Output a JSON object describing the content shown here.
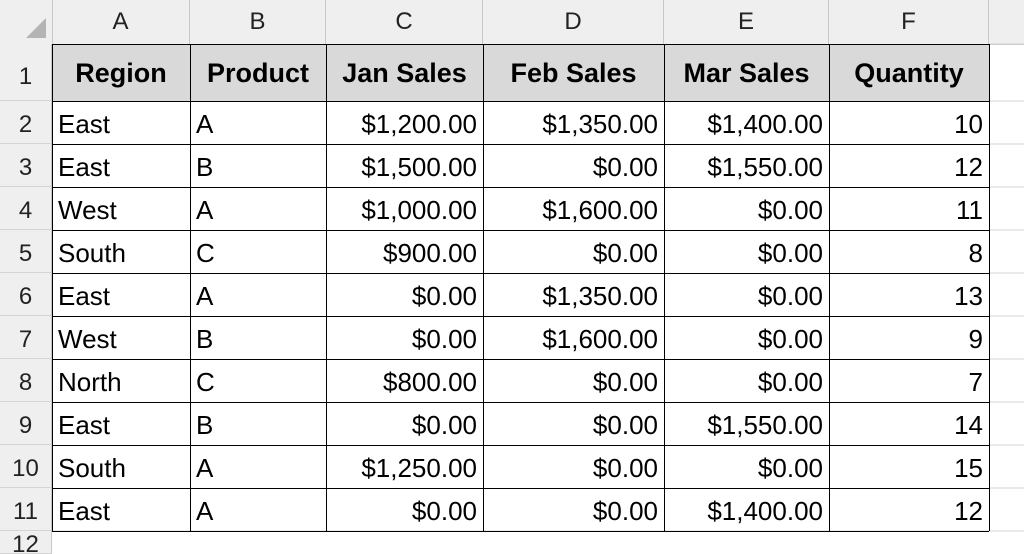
{
  "columns": [
    "A",
    "B",
    "C",
    "D",
    "E",
    "F"
  ],
  "rows_visible": [
    "1",
    "2",
    "3",
    "4",
    "5",
    "6",
    "7",
    "8",
    "9",
    "10",
    "11",
    "12"
  ],
  "headers": [
    "Region",
    "Product",
    "Jan Sales",
    "Feb Sales",
    "Mar Sales",
    "Quantity"
  ],
  "data": [
    [
      "East",
      "A",
      "$1,200.00",
      "$1,350.00",
      "$1,400.00",
      "10"
    ],
    [
      "East",
      "B",
      "$1,500.00",
      "$0.00",
      "$1,550.00",
      "12"
    ],
    [
      "West",
      "A",
      "$1,000.00",
      "$1,600.00",
      "$0.00",
      "11"
    ],
    [
      "South",
      "C",
      "$900.00",
      "$0.00",
      "$0.00",
      "8"
    ],
    [
      "East",
      "A",
      "$0.00",
      "$1,350.00",
      "$0.00",
      "13"
    ],
    [
      "West",
      "B",
      "$0.00",
      "$1,600.00",
      "$0.00",
      "9"
    ],
    [
      "North",
      "C",
      "$800.00",
      "$0.00",
      "$0.00",
      "7"
    ],
    [
      "East",
      "B",
      "$0.00",
      "$0.00",
      "$1,550.00",
      "14"
    ],
    [
      "South",
      "A",
      "$1,250.00",
      "$0.00",
      "$0.00",
      "15"
    ],
    [
      "East",
      "A",
      "$0.00",
      "$0.00",
      "$1,400.00",
      "12"
    ]
  ],
  "colors": {
    "header_fill": "#d9d9d9",
    "chrome": "#efefef",
    "grid": "#d4d4d4"
  }
}
